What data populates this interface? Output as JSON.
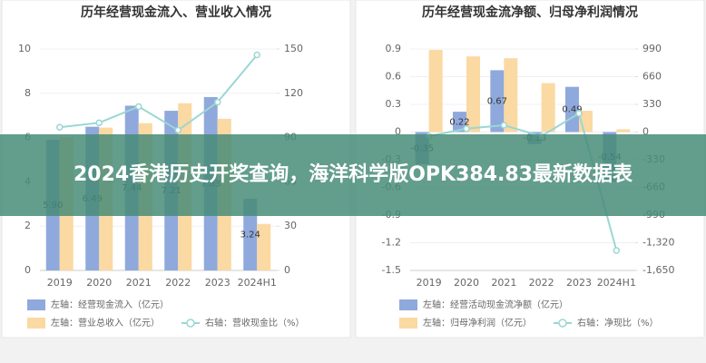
{
  "banner": {
    "text": "2024香港历史开奖查询，海洋科学版OPK384.83最新数据表"
  },
  "chart_data": [
    {
      "type": "bar",
      "title": "历年经营现金流入、营业收入情况",
      "categories": [
        "2019",
        "2020",
        "2021",
        "2022",
        "2023",
        "2024H1"
      ],
      "ylim": [
        0,
        10
      ],
      "yticks": [
        0,
        2,
        4,
        6,
        8,
        10
      ],
      "y2lim": [
        0,
        150
      ],
      "y2ticks": [
        0,
        30,
        60,
        90,
        120,
        150
      ],
      "grid": true,
      "series": [
        {
          "name": "左轴：经营现金流入（亿元）",
          "color": "#8fa9dc",
          "values": [
            5.9,
            6.49,
            7.44,
            7.21,
            7.83,
            3.24
          ],
          "value_labels": [
            "5.90",
            "6.49",
            "7.44",
            "7.21",
            "7.83",
            "3.24"
          ]
        },
        {
          "name": "左轴：营业总收入（亿元）",
          "color": "#fbd9a2",
          "values": [
            6.0,
            6.45,
            6.65,
            7.55,
            6.85,
            2.1
          ]
        },
        {
          "name": "右轴：营收现金比（%）",
          "color": "#9ad7d4",
          "type": "line",
          "axis": "y2",
          "values": [
            97,
            100,
            111,
            95,
            114,
            146
          ]
        }
      ]
    },
    {
      "type": "bar",
      "title": "历年经营现金流净额、归母净利润情况",
      "categories": [
        "2019",
        "2020",
        "2021",
        "2022",
        "2023",
        "2024H1"
      ],
      "ylim": [
        -1.5,
        0.9
      ],
      "yticks": [
        -1.5,
        -1.2,
        -0.9,
        -0.6,
        -0.3,
        0,
        0.3,
        0.6,
        0.9
      ],
      "y2lim": [
        -1650,
        990
      ],
      "y2ticks": [
        {
          "value": -1650,
          "label": "-1,650"
        },
        {
          "value": -1320,
          "label": "-1,320"
        },
        -990,
        -660,
        -330,
        0,
        330,
        660,
        990
      ],
      "grid": true,
      "series": [
        {
          "name": "左轴：经营活动现金流净额（亿元）",
          "color": "#8fa9dc",
          "values": [
            -0.35,
            0.22,
            0.67,
            -0.13,
            0.49,
            -0.54
          ]
        },
        {
          "name": "左轴：归母净利润（亿元）",
          "color": "#fbd9a2",
          "values": [
            0.89,
            0.82,
            0.8,
            0.53,
            0.23,
            0.03
          ]
        },
        {
          "name": "右轴：净现比（%）",
          "color": "#9ad7d4",
          "type": "line",
          "axis": "y2",
          "values": [
            -49,
            40,
            81,
            -49,
            222,
            -1412
          ]
        }
      ]
    }
  ]
}
